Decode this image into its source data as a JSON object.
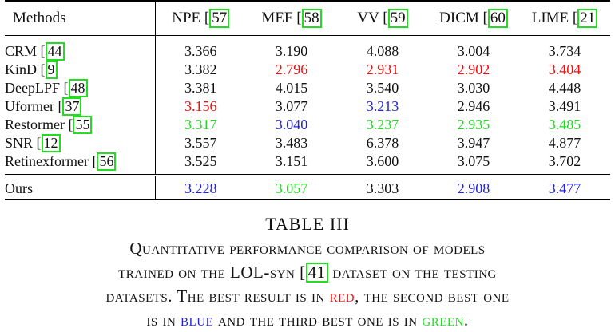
{
  "table": {
    "header": {
      "methods": "Methods",
      "columns": [
        {
          "name": "NPE",
          "ref": "57"
        },
        {
          "name": "MEF",
          "ref": "58"
        },
        {
          "name": "VV",
          "ref": "59"
        },
        {
          "name": "DICM",
          "ref": "60"
        },
        {
          "name": "LIME",
          "ref": "21"
        }
      ]
    },
    "rows": [
      {
        "method": "CRM",
        "ref": "44",
        "values": [
          {
            "v": "3.366",
            "c": ""
          },
          {
            "v": "3.190",
            "c": ""
          },
          {
            "v": "4.088",
            "c": ""
          },
          {
            "v": "3.004",
            "c": ""
          },
          {
            "v": "3.734",
            "c": ""
          }
        ]
      },
      {
        "method": "KinD",
        "ref": "9",
        "values": [
          {
            "v": "3.382",
            "c": ""
          },
          {
            "v": "2.796",
            "c": "red"
          },
          {
            "v": "2.931",
            "c": "red"
          },
          {
            "v": "2.902",
            "c": "red"
          },
          {
            "v": "3.404",
            "c": "red"
          }
        ]
      },
      {
        "method": "DeepLPF",
        "ref": "48",
        "values": [
          {
            "v": "3.381",
            "c": ""
          },
          {
            "v": "4.015",
            "c": ""
          },
          {
            "v": "3.540",
            "c": ""
          },
          {
            "v": "3.030",
            "c": ""
          },
          {
            "v": "4.448",
            "c": ""
          }
        ]
      },
      {
        "method": "Uformer",
        "ref": "37",
        "values": [
          {
            "v": "3.156",
            "c": "red"
          },
          {
            "v": "3.077",
            "c": ""
          },
          {
            "v": "3.213",
            "c": "blue"
          },
          {
            "v": "2.946",
            "c": ""
          },
          {
            "v": "3.491",
            "c": ""
          }
        ]
      },
      {
        "method": "Restormer",
        "ref": "55",
        "values": [
          {
            "v": "3.317",
            "c": "green"
          },
          {
            "v": "3.040",
            "c": "blue"
          },
          {
            "v": "3.237",
            "c": "green"
          },
          {
            "v": "2.935",
            "c": "green"
          },
          {
            "v": "3.485",
            "c": "green"
          }
        ]
      },
      {
        "method": "SNR",
        "ref": "12",
        "values": [
          {
            "v": "3.557",
            "c": ""
          },
          {
            "v": "3.483",
            "c": ""
          },
          {
            "v": "6.378",
            "c": ""
          },
          {
            "v": "3.947",
            "c": ""
          },
          {
            "v": "4.877",
            "c": ""
          }
        ]
      },
      {
        "method": "Retinexformer",
        "ref": "56",
        "values": [
          {
            "v": "3.525",
            "c": ""
          },
          {
            "v": "3.151",
            "c": ""
          },
          {
            "v": "3.600",
            "c": ""
          },
          {
            "v": "3.075",
            "c": ""
          },
          {
            "v": "3.702",
            "c": ""
          }
        ]
      }
    ],
    "ours": {
      "method": "Ours",
      "values": [
        {
          "v": "3.228",
          "c": "blue"
        },
        {
          "v": "3.057",
          "c": "green"
        },
        {
          "v": "3.303",
          "c": ""
        },
        {
          "v": "2.908",
          "c": "blue"
        },
        {
          "v": "3.477",
          "c": "blue"
        }
      ]
    }
  },
  "caption": {
    "title": "TABLE III",
    "line1": "Quantitative performance comparison of models",
    "line2_pre": "trained on the LOL-syn",
    "line2_ref": "41",
    "line2_post": "dataset on the testing",
    "line3_pre": "datasets. The best result is in",
    "line3_red": "red",
    "line3_post": ", the second best one",
    "line4_pre": "is in",
    "line4_blue": "blue",
    "line4_mid": "and the third best one is in",
    "line4_green": "green",
    "line4_end": "."
  },
  "colors": {
    "red": "#ee1111",
    "blue": "#2222dd",
    "green": "#22dd22"
  }
}
